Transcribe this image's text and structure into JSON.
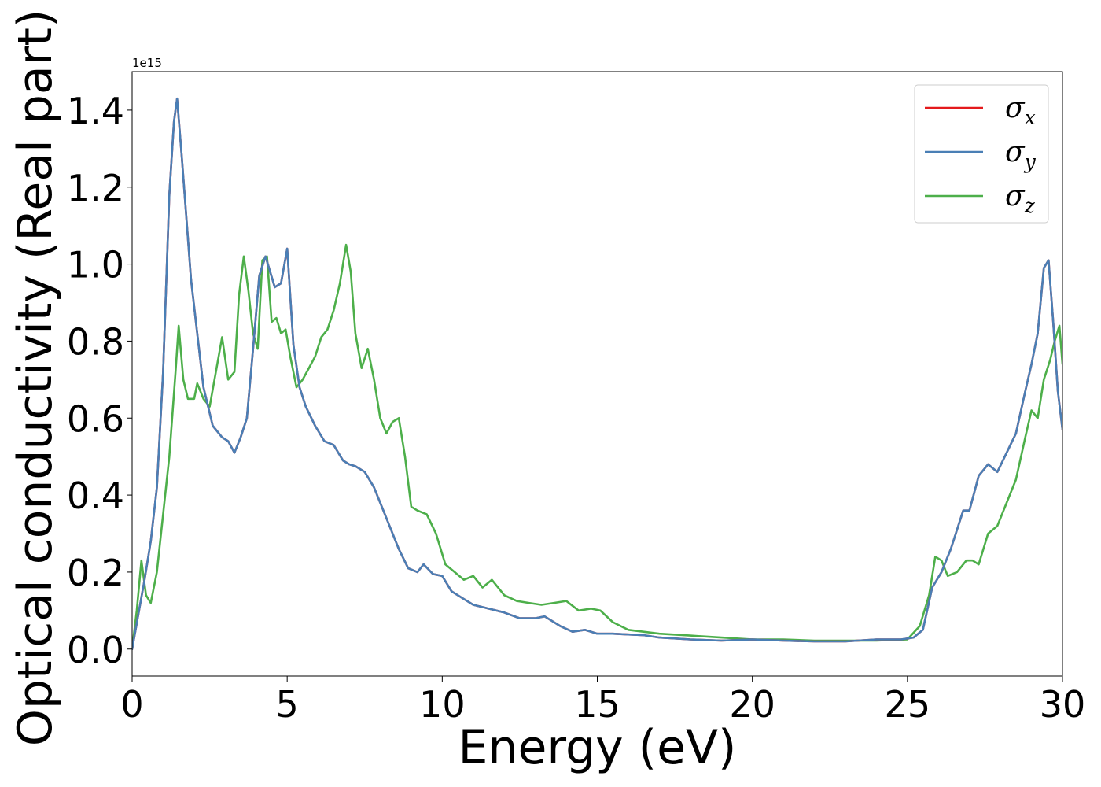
{
  "chart_data": {
    "type": "line",
    "xlabel": "Energy (eV)",
    "ylabel": "Optical conductivity (Real part)",
    "offset_text": "1e15",
    "xlim": [
      0,
      30
    ],
    "ylim": [
      -0.07,
      1.5
    ],
    "scale": 1000000000000000.0,
    "xticks": [
      0,
      5,
      10,
      15,
      20,
      25,
      30
    ],
    "xtick_labels": [
      "0",
      "5",
      "10",
      "15",
      "20",
      "25",
      "30"
    ],
    "yticks": [
      0.0,
      0.2,
      0.4,
      0.6,
      0.8,
      1.0,
      1.2,
      1.4
    ],
    "ytick_labels": [
      "0.0",
      "0.2",
      "0.4",
      "0.6",
      "0.8",
      "1.0",
      "1.2",
      "1.4"
    ],
    "grid": false,
    "legend_position": "top-right",
    "series": [
      {
        "name": "σx",
        "symbol": "σ",
        "subscript": "x",
        "color": "#e41a1c",
        "x": [
          0,
          0.2,
          0.4,
          0.6,
          0.8,
          1.0,
          1.2,
          1.35,
          1.45,
          1.6,
          1.75,
          1.9,
          2.1,
          2.3,
          2.6,
          2.9,
          3.1,
          3.3,
          3.5,
          3.7,
          3.9,
          4.1,
          4.3,
          4.6,
          4.8,
          5.0,
          5.2,
          5.4,
          5.6,
          5.9,
          6.2,
          6.5,
          6.8,
          7.0,
          7.2,
          7.5,
          7.8,
          8.0,
          8.3,
          8.6,
          8.9,
          9.2,
          9.4,
          9.7,
          10.0,
          10.3,
          10.7,
          11.0,
          11.5,
          12.0,
          12.5,
          13.0,
          13.3,
          13.8,
          14.2,
          14.6,
          15.0,
          15.5,
          16.0,
          16.5,
          17.0,
          18.0,
          19.0,
          20.0,
          21.0,
          22.0,
          23.0,
          24.0,
          24.8,
          25.2,
          25.5,
          25.8,
          26.1,
          26.4,
          26.8,
          27.0,
          27.3,
          27.6,
          27.9,
          28.2,
          28.5,
          28.8,
          29.0,
          29.2,
          29.4,
          29.55,
          29.7,
          29.85,
          30.0
        ],
        "values": [
          0.0,
          0.09,
          0.18,
          0.28,
          0.42,
          0.72,
          1.18,
          1.37,
          1.43,
          1.28,
          1.12,
          0.96,
          0.82,
          0.68,
          0.58,
          0.55,
          0.54,
          0.51,
          0.55,
          0.6,
          0.78,
          0.97,
          1.02,
          0.94,
          0.95,
          1.04,
          0.79,
          0.68,
          0.63,
          0.58,
          0.54,
          0.53,
          0.49,
          0.48,
          0.475,
          0.46,
          0.42,
          0.38,
          0.32,
          0.26,
          0.21,
          0.2,
          0.22,
          0.195,
          0.19,
          0.15,
          0.13,
          0.115,
          0.105,
          0.095,
          0.08,
          0.08,
          0.085,
          0.06,
          0.045,
          0.05,
          0.04,
          0.04,
          0.038,
          0.036,
          0.03,
          0.025,
          0.022,
          0.025,
          0.022,
          0.02,
          0.02,
          0.025,
          0.025,
          0.03,
          0.05,
          0.16,
          0.2,
          0.26,
          0.36,
          0.36,
          0.45,
          0.48,
          0.46,
          0.51,
          0.56,
          0.67,
          0.74,
          0.82,
          0.99,
          1.01,
          0.85,
          0.67,
          0.57
        ]
      },
      {
        "name": "σy",
        "symbol": "σ",
        "subscript": "y",
        "color": "#4a7fb5",
        "x": [
          0,
          0.2,
          0.4,
          0.6,
          0.8,
          1.0,
          1.2,
          1.35,
          1.45,
          1.6,
          1.75,
          1.9,
          2.1,
          2.3,
          2.6,
          2.9,
          3.1,
          3.3,
          3.5,
          3.7,
          3.9,
          4.1,
          4.3,
          4.6,
          4.8,
          5.0,
          5.2,
          5.4,
          5.6,
          5.9,
          6.2,
          6.5,
          6.8,
          7.0,
          7.2,
          7.5,
          7.8,
          8.0,
          8.3,
          8.6,
          8.9,
          9.2,
          9.4,
          9.7,
          10.0,
          10.3,
          10.7,
          11.0,
          11.5,
          12.0,
          12.5,
          13.0,
          13.3,
          13.8,
          14.2,
          14.6,
          15.0,
          15.5,
          16.0,
          16.5,
          17.0,
          18.0,
          19.0,
          20.0,
          21.0,
          22.0,
          23.0,
          24.0,
          24.8,
          25.2,
          25.5,
          25.8,
          26.1,
          26.4,
          26.8,
          27.0,
          27.3,
          27.6,
          27.9,
          28.2,
          28.5,
          28.8,
          29.0,
          29.2,
          29.4,
          29.55,
          29.7,
          29.85,
          30.0
        ],
        "values": [
          0.0,
          0.09,
          0.18,
          0.28,
          0.42,
          0.72,
          1.18,
          1.37,
          1.43,
          1.28,
          1.12,
          0.96,
          0.82,
          0.68,
          0.58,
          0.55,
          0.54,
          0.51,
          0.55,
          0.6,
          0.78,
          0.97,
          1.02,
          0.94,
          0.95,
          1.04,
          0.79,
          0.68,
          0.63,
          0.58,
          0.54,
          0.53,
          0.49,
          0.48,
          0.475,
          0.46,
          0.42,
          0.38,
          0.32,
          0.26,
          0.21,
          0.2,
          0.22,
          0.195,
          0.19,
          0.15,
          0.13,
          0.115,
          0.105,
          0.095,
          0.08,
          0.08,
          0.085,
          0.06,
          0.045,
          0.05,
          0.04,
          0.04,
          0.038,
          0.036,
          0.03,
          0.025,
          0.022,
          0.025,
          0.022,
          0.02,
          0.02,
          0.025,
          0.025,
          0.03,
          0.05,
          0.16,
          0.2,
          0.26,
          0.36,
          0.36,
          0.45,
          0.48,
          0.46,
          0.51,
          0.56,
          0.67,
          0.74,
          0.82,
          0.99,
          1.01,
          0.85,
          0.67,
          0.57
        ]
      },
      {
        "name": "σz",
        "symbol": "σ",
        "subscript": "z",
        "color": "#4daf4a",
        "x": [
          0,
          0.15,
          0.3,
          0.45,
          0.6,
          0.8,
          1.0,
          1.2,
          1.4,
          1.5,
          1.65,
          1.8,
          2.0,
          2.1,
          2.3,
          2.5,
          2.7,
          2.9,
          3.1,
          3.3,
          3.45,
          3.6,
          3.75,
          3.9,
          4.05,
          4.2,
          4.35,
          4.5,
          4.65,
          4.8,
          4.95,
          5.1,
          5.3,
          5.5,
          5.7,
          5.9,
          6.1,
          6.3,
          6.5,
          6.7,
          6.9,
          7.05,
          7.2,
          7.4,
          7.6,
          7.8,
          8.0,
          8.2,
          8.4,
          8.6,
          8.8,
          9.0,
          9.2,
          9.5,
          9.8,
          10.1,
          10.4,
          10.7,
          11.0,
          11.3,
          11.6,
          12.0,
          12.4,
          12.8,
          13.2,
          13.6,
          14.0,
          14.4,
          14.8,
          15.1,
          15.5,
          16.0,
          17.0,
          18.0,
          19.0,
          20.0,
          21.0,
          22.0,
          23.0,
          24.0,
          25.0,
          25.4,
          25.7,
          25.9,
          26.1,
          26.3,
          26.6,
          26.9,
          27.1,
          27.3,
          27.6,
          27.9,
          28.2,
          28.5,
          28.8,
          29.0,
          29.2,
          29.4,
          29.6,
          29.75,
          29.9,
          30.0
        ],
        "values": [
          0.0,
          0.1,
          0.23,
          0.14,
          0.12,
          0.2,
          0.35,
          0.5,
          0.72,
          0.84,
          0.7,
          0.65,
          0.65,
          0.69,
          0.65,
          0.63,
          0.72,
          0.81,
          0.7,
          0.72,
          0.92,
          1.02,
          0.93,
          0.82,
          0.78,
          1.01,
          1.02,
          0.85,
          0.86,
          0.82,
          0.83,
          0.76,
          0.68,
          0.7,
          0.73,
          0.76,
          0.81,
          0.83,
          0.88,
          0.95,
          1.05,
          0.98,
          0.82,
          0.73,
          0.78,
          0.7,
          0.6,
          0.56,
          0.59,
          0.6,
          0.5,
          0.37,
          0.36,
          0.35,
          0.3,
          0.22,
          0.2,
          0.18,
          0.19,
          0.16,
          0.18,
          0.14,
          0.125,
          0.12,
          0.115,
          0.12,
          0.125,
          0.1,
          0.105,
          0.1,
          0.07,
          0.05,
          0.04,
          0.035,
          0.03,
          0.025,
          0.025,
          0.022,
          0.022,
          0.022,
          0.025,
          0.06,
          0.14,
          0.24,
          0.23,
          0.19,
          0.2,
          0.23,
          0.23,
          0.22,
          0.3,
          0.32,
          0.38,
          0.44,
          0.55,
          0.62,
          0.6,
          0.7,
          0.75,
          0.8,
          0.84,
          0.74
        ]
      }
    ]
  }
}
